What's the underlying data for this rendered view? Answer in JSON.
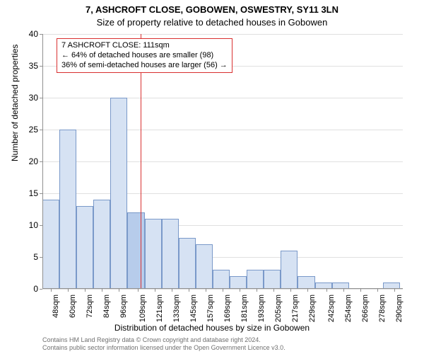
{
  "titles": {
    "main": "7, ASHCROFT CLOSE, GOBOWEN, OSWESTRY, SY11 3LN",
    "sub": "Size of property relative to detached houses in Gobowen",
    "x_axis": "Distribution of detached houses by size in Gobowen",
    "y_axis": "Number of detached properties"
  },
  "chart": {
    "type": "histogram",
    "background_color": "#ffffff",
    "grid_color": "#e0e0e0",
    "axis_color": "#909090",
    "bar_fill": "#d6e2f3",
    "bar_highlight_fill": "#b7cceb",
    "bar_border": "#7a99c9",
    "ref_line_color": "#d93030",
    "ylim": [
      0,
      40
    ],
    "ytick_step": 5,
    "xlim_sqm": [
      42,
      296
    ],
    "bar_width_sqm": 12,
    "ref_value_sqm": 111,
    "highlight_bin_index": 5,
    "x_ticks": [
      48,
      60,
      72,
      84,
      96,
      109,
      121,
      133,
      145,
      157,
      169,
      181,
      193,
      205,
      217,
      229,
      242,
      254,
      266,
      278,
      290
    ],
    "x_tick_suffix": "sqm",
    "y_ticks": [
      0,
      5,
      10,
      15,
      20,
      25,
      30,
      35,
      40
    ],
    "bar_starts_sqm": [
      42,
      54,
      66,
      78,
      90,
      102,
      114,
      126,
      138,
      150,
      162,
      174,
      186,
      198,
      210,
      222,
      234,
      246,
      258,
      270,
      282
    ],
    "bar_values": [
      14,
      25,
      13,
      14,
      30,
      12,
      11,
      11,
      8,
      7,
      3,
      2,
      3,
      3,
      6,
      2,
      1,
      1,
      0,
      0,
      1
    ]
  },
  "annotation": {
    "line1": "7 ASHCROFT CLOSE: 111sqm",
    "line2": "← 64% of detached houses are smaller (98)",
    "line3": "36% of semi-detached houses are larger (56) →"
  },
  "footnote": {
    "line1": "Contains HM Land Registry data © Crown copyright and database right 2024.",
    "line2": "Contains public sector information licensed under the Open Government Licence v3.0."
  }
}
